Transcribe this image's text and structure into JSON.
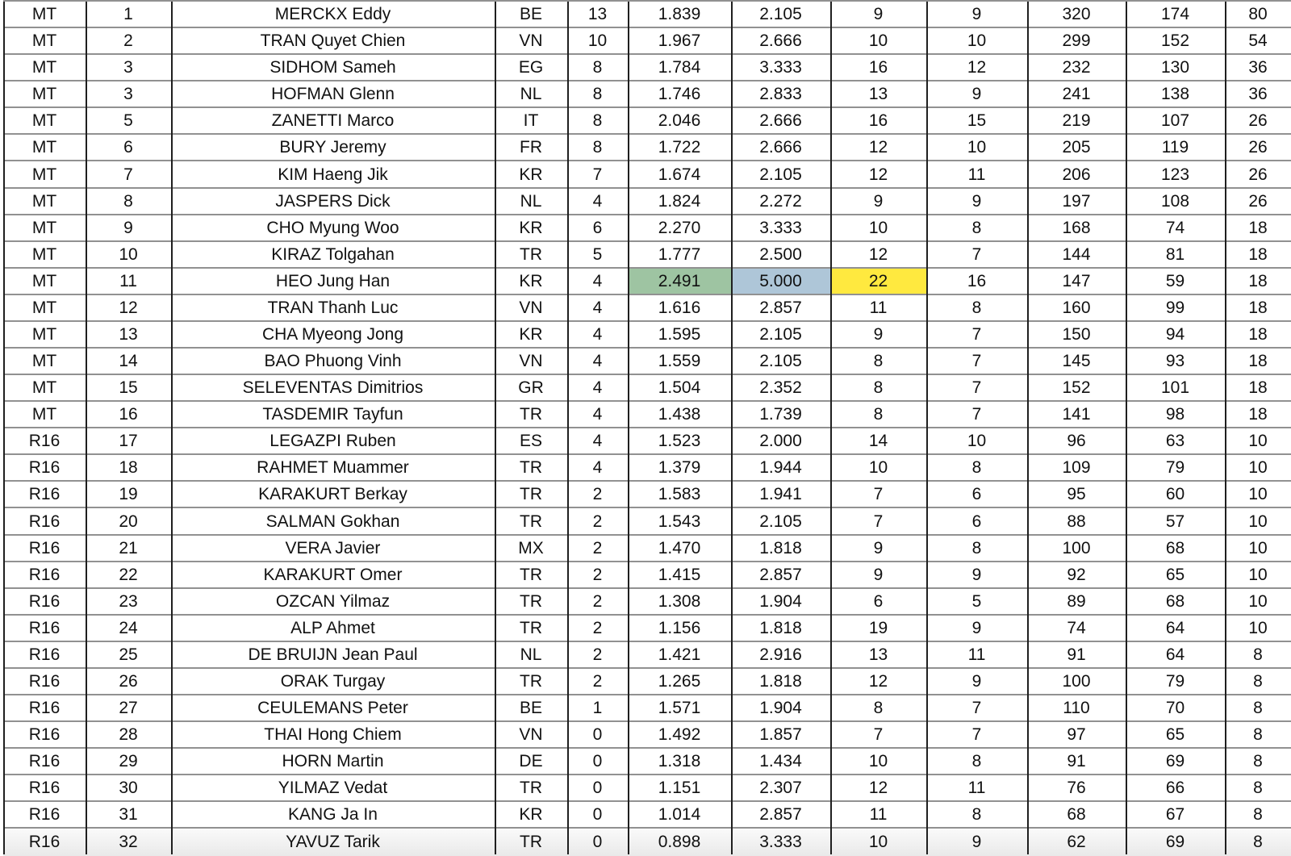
{
  "table": {
    "column_keys": [
      "round",
      "rank",
      "player-name",
      "country",
      "match-points",
      "general-average",
      "best-average",
      "high-run",
      "high-run-2",
      "caroms",
      "innings",
      "ranking-points"
    ],
    "highlight_colors": {
      "green": "#9ec4a2",
      "blue": "#aec6d8",
      "yellow": "#ffe93f"
    },
    "grid_line_color": "#1f1f1f",
    "row_line_color": "#919191",
    "rows": [
      {
        "cells": [
          "MT",
          "1",
          "MERCKX Eddy",
          "BE",
          "13",
          "1.839",
          "2.105",
          "9",
          "9",
          "320",
          "174",
          "80"
        ]
      },
      {
        "cells": [
          "MT",
          "2",
          "TRAN Quyet Chien",
          "VN",
          "10",
          "1.967",
          "2.666",
          "10",
          "10",
          "299",
          "152",
          "54"
        ]
      },
      {
        "cells": [
          "MT",
          "3",
          "SIDHOM Sameh",
          "EG",
          "8",
          "1.784",
          "3.333",
          "16",
          "12",
          "232",
          "130",
          "36"
        ]
      },
      {
        "cells": [
          "MT",
          "3",
          "HOFMAN Glenn",
          "NL",
          "8",
          "1.746",
          "2.833",
          "13",
          "9",
          "241",
          "138",
          "36"
        ]
      },
      {
        "cells": [
          "MT",
          "5",
          "ZANETTI Marco",
          "IT",
          "8",
          "2.046",
          "2.666",
          "16",
          "15",
          "219",
          "107",
          "26"
        ]
      },
      {
        "cells": [
          "MT",
          "6",
          "BURY Jeremy",
          "FR",
          "8",
          "1.722",
          "2.666",
          "12",
          "10",
          "205",
          "119",
          "26"
        ]
      },
      {
        "cells": [
          "MT",
          "7",
          "KIM Haeng Jik",
          "KR",
          "7",
          "1.674",
          "2.105",
          "12",
          "11",
          "206",
          "123",
          "26"
        ]
      },
      {
        "cells": [
          "MT",
          "8",
          "JASPERS Dick",
          "NL",
          "4",
          "1.824",
          "2.272",
          "9",
          "9",
          "197",
          "108",
          "26"
        ]
      },
      {
        "cells": [
          "MT",
          "9",
          "CHO Myung Woo",
          "KR",
          "6",
          "2.270",
          "3.333",
          "10",
          "8",
          "168",
          "74",
          "18"
        ]
      },
      {
        "cells": [
          "MT",
          "10",
          "KIRAZ Tolgahan",
          "TR",
          "5",
          "1.777",
          "2.500",
          "12",
          "7",
          "144",
          "81",
          "18"
        ]
      },
      {
        "cells": [
          "MT",
          "11",
          "HEO Jung Han",
          "KR",
          "4",
          "2.491",
          "5.000",
          "22",
          "16",
          "147",
          "59",
          "18"
        ],
        "highlights": {
          "5": "green",
          "6": "blue",
          "7": "yellow"
        }
      },
      {
        "cells": [
          "MT",
          "12",
          "TRAN Thanh Luc",
          "VN",
          "4",
          "1.616",
          "2.857",
          "11",
          "8",
          "160",
          "99",
          "18"
        ]
      },
      {
        "cells": [
          "MT",
          "13",
          "CHA Myeong Jong",
          "KR",
          "4",
          "1.595",
          "2.105",
          "9",
          "7",
          "150",
          "94",
          "18"
        ]
      },
      {
        "cells": [
          "MT",
          "14",
          "BAO Phuong Vinh",
          "VN",
          "4",
          "1.559",
          "2.105",
          "8",
          "7",
          "145",
          "93",
          "18"
        ]
      },
      {
        "cells": [
          "MT",
          "15",
          "SELEVENTAS Dimitrios",
          "GR",
          "4",
          "1.504",
          "2.352",
          "8",
          "7",
          "152",
          "101",
          "18"
        ]
      },
      {
        "cells": [
          "MT",
          "16",
          "TASDEMIR Tayfun",
          "TR",
          "4",
          "1.438",
          "1.739",
          "8",
          "7",
          "141",
          "98",
          "18"
        ]
      },
      {
        "cells": [
          "R16",
          "17",
          "LEGAZPI Ruben",
          "ES",
          "4",
          "1.523",
          "2.000",
          "14",
          "10",
          "96",
          "63",
          "10"
        ]
      },
      {
        "cells": [
          "R16",
          "18",
          "RAHMET Muammer",
          "TR",
          "4",
          "1.379",
          "1.944",
          "10",
          "8",
          "109",
          "79",
          "10"
        ]
      },
      {
        "cells": [
          "R16",
          "19",
          "KARAKURT Berkay",
          "TR",
          "2",
          "1.583",
          "1.941",
          "7",
          "6",
          "95",
          "60",
          "10"
        ]
      },
      {
        "cells": [
          "R16",
          "20",
          "SALMAN Gokhan",
          "TR",
          "2",
          "1.543",
          "2.105",
          "7",
          "6",
          "88",
          "57",
          "10"
        ]
      },
      {
        "cells": [
          "R16",
          "21",
          "VERA Javier",
          "MX",
          "2",
          "1.470",
          "1.818",
          "9",
          "8",
          "100",
          "68",
          "10"
        ]
      },
      {
        "cells": [
          "R16",
          "22",
          "KARAKURT Omer",
          "TR",
          "2",
          "1.415",
          "2.857",
          "9",
          "9",
          "92",
          "65",
          "10"
        ]
      },
      {
        "cells": [
          "R16",
          "23",
          "OZCAN Yilmaz",
          "TR",
          "2",
          "1.308",
          "1.904",
          "6",
          "5",
          "89",
          "68",
          "10"
        ]
      },
      {
        "cells": [
          "R16",
          "24",
          "ALP Ahmet",
          "TR",
          "2",
          "1.156",
          "1.818",
          "19",
          "9",
          "74",
          "64",
          "10"
        ]
      },
      {
        "cells": [
          "R16",
          "25",
          "DE BRUIJN Jean Paul",
          "NL",
          "2",
          "1.421",
          "2.916",
          "13",
          "11",
          "91",
          "64",
          "8"
        ]
      },
      {
        "cells": [
          "R16",
          "26",
          "ORAK Turgay",
          "TR",
          "2",
          "1.265",
          "1.818",
          "12",
          "9",
          "100",
          "79",
          "8"
        ]
      },
      {
        "cells": [
          "R16",
          "27",
          "CEULEMANS Peter",
          "BE",
          "1",
          "1.571",
          "1.904",
          "8",
          "7",
          "110",
          "70",
          "8"
        ]
      },
      {
        "cells": [
          "R16",
          "28",
          "THAI Hong Chiem",
          "VN",
          "0",
          "1.492",
          "1.857",
          "7",
          "7",
          "97",
          "65",
          "8"
        ]
      },
      {
        "cells": [
          "R16",
          "29",
          "HORN Martin",
          "DE",
          "0",
          "1.318",
          "1.434",
          "10",
          "8",
          "91",
          "69",
          "8"
        ]
      },
      {
        "cells": [
          "R16",
          "30",
          "YILMAZ Vedat",
          "TR",
          "0",
          "1.151",
          "2.307",
          "12",
          "11",
          "76",
          "66",
          "8"
        ]
      },
      {
        "cells": [
          "R16",
          "31",
          "KANG Ja In",
          "KR",
          "0",
          "1.014",
          "2.857",
          "11",
          "8",
          "68",
          "67",
          "8"
        ]
      },
      {
        "cells": [
          "R16",
          "32",
          "YAVUZ Tarik",
          "TR",
          "0",
          "0.898",
          "3.333",
          "10",
          "9",
          "62",
          "69",
          "8"
        ]
      }
    ],
    "vline_offsets": [
      0,
      102,
      208,
      609,
      699,
      774,
      902,
      1025,
      1144,
      1269,
      1391,
      1514
    ]
  }
}
